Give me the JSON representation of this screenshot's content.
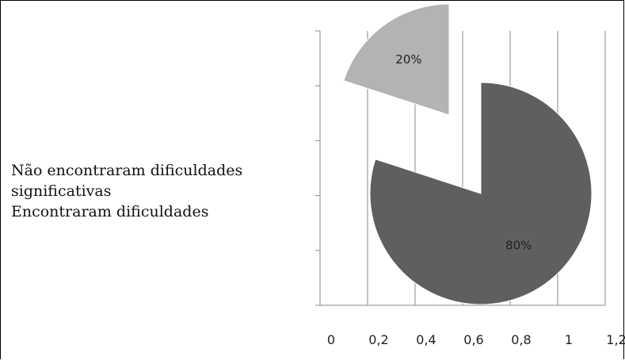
{
  "chart_data": {
    "type": "pie",
    "title": "",
    "series": [
      {
        "label": "Não encontraram dificuldades significativas",
        "value": 80,
        "value_label": "80%",
        "color": "#5f5f5f"
      },
      {
        "label": "Encontraram dificuldades",
        "value": 20,
        "value_label": "20%",
        "color": "#b3b3b3"
      }
    ],
    "exploded": true,
    "x_ticks": [
      "0",
      "0,2",
      "0,4",
      "0,6",
      "0,8",
      "1",
      "1,2"
    ],
    "xlim": [
      0,
      1.2
    ],
    "y_gridlines": 6,
    "vertical_grid": true,
    "legend": {
      "placement": "left",
      "lines": [
        "Não encontraram dificuldades",
        "significativas",
        "Encontraram dificuldades"
      ]
    }
  }
}
